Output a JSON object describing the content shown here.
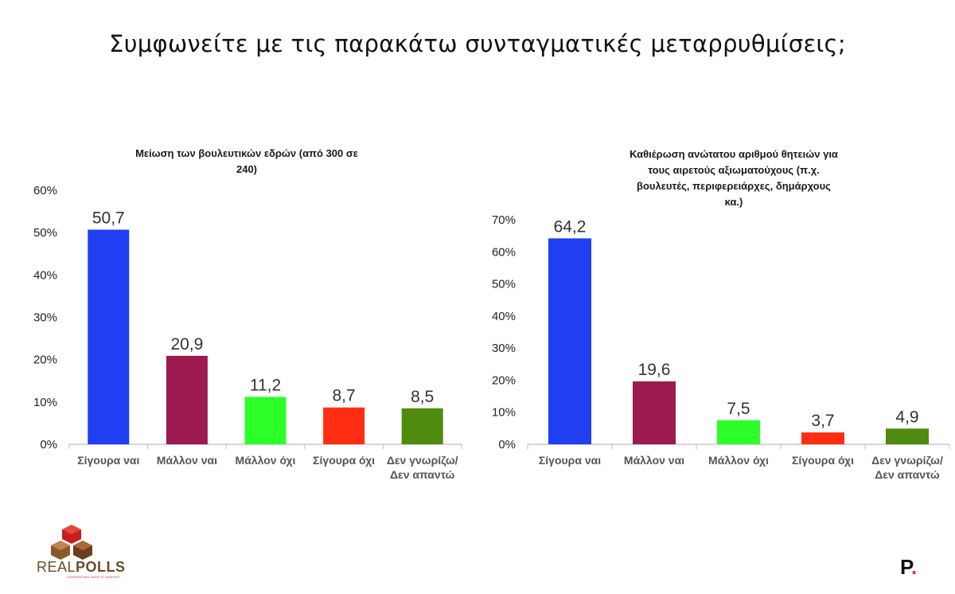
{
  "page": {
    "title": "Συμφωνείτε με τις παρακάτω συνταγματικές μεταρρυθμίσεις;"
  },
  "chart_data": [
    {
      "type": "bar",
      "title": "Μείωση των βουλευτικών εδρών (από 300 σε 240)",
      "title_lines": [
        "Μείωση των βουλευτικών εδρών (από 300 σε",
        "240)"
      ],
      "categories": [
        "Σίγουρα ναι",
        "Μάλλον ναι",
        "Μάλλον όχι",
        "Σίγουρα όχι",
        "Δεν γνωρίζω/ Δεν απαντώ"
      ],
      "category_lines": [
        [
          "Σίγουρα ναι"
        ],
        [
          "Μάλλον ναι"
        ],
        [
          "Μάλλον όχι"
        ],
        [
          "Σίγουρα όχι"
        ],
        [
          "Δεν γνωρίζω/",
          "Δεν απαντώ"
        ]
      ],
      "values": [
        50.7,
        20.9,
        11.2,
        8.7,
        8.5
      ],
      "value_labels": [
        "50,7",
        "20,9",
        "11,2",
        "8,7",
        "8,5"
      ],
      "colors": [
        "#1f3ff0",
        "#9c1a4f",
        "#2dff29",
        "#ff2e12",
        "#4e8b0e"
      ],
      "ylim": [
        0,
        60
      ],
      "yticks": [
        0,
        10,
        20,
        30,
        40,
        50,
        60
      ],
      "ytick_labels": [
        "0%",
        "10%",
        "20%",
        "30%",
        "40%",
        "50%",
        "60%"
      ],
      "grid": false,
      "legend": "none"
    },
    {
      "type": "bar",
      "title": "Καθιέρωση ανώτατου αριθμού θητειών για τους αιρετούς αξιωματούχους (π.χ. βουλευτές, περιφερειάρχες, δημάρχους κα.)",
      "title_lines": [
        "Καθιέρωση ανώτατου αριθμού θητειών για",
        "τους αιρετούς αξιωματούχους (π.χ.",
        "βουλευτές, περιφερειάρχες, δημάρχους",
        "κα.)"
      ],
      "categories": [
        "Σίγουρα ναι",
        "Μάλλον ναι",
        "Μάλλον όχι",
        "Σίγουρα όχι",
        "Δεν γνωρίζω/ Δεν απαντώ"
      ],
      "category_lines": [
        [
          "Σίγουρα ναι"
        ],
        [
          "Μάλλον ναι"
        ],
        [
          "Μάλλον όχι"
        ],
        [
          "Σίγουρα όχι"
        ],
        [
          "Δεν γνωρίζω/",
          "Δεν απαντώ"
        ]
      ],
      "values": [
        64.2,
        19.6,
        7.5,
        3.7,
        4.9
      ],
      "value_labels": [
        "64,2",
        "19,6",
        "7,5",
        "3,7",
        "4,9"
      ],
      "colors": [
        "#1f3ff0",
        "#9c1a4f",
        "#2dff29",
        "#ff2e12",
        "#4e8b0e"
      ],
      "ylim": [
        0,
        70
      ],
      "yticks": [
        0,
        10,
        20,
        30,
        40,
        50,
        60,
        70
      ],
      "ytick_labels": [
        "0%",
        "10%",
        "20%",
        "30%",
        "40%",
        "50%",
        "60%",
        "70%"
      ],
      "grid": false,
      "legend": "none"
    }
  ],
  "logos": {
    "realpolls_light": "REAL",
    "realpolls_bold": "POLLS",
    "realpolls_tagline": "CONVERTING DATA TO INSIGHT",
    "p_letter": "P",
    "p_dot": "."
  }
}
